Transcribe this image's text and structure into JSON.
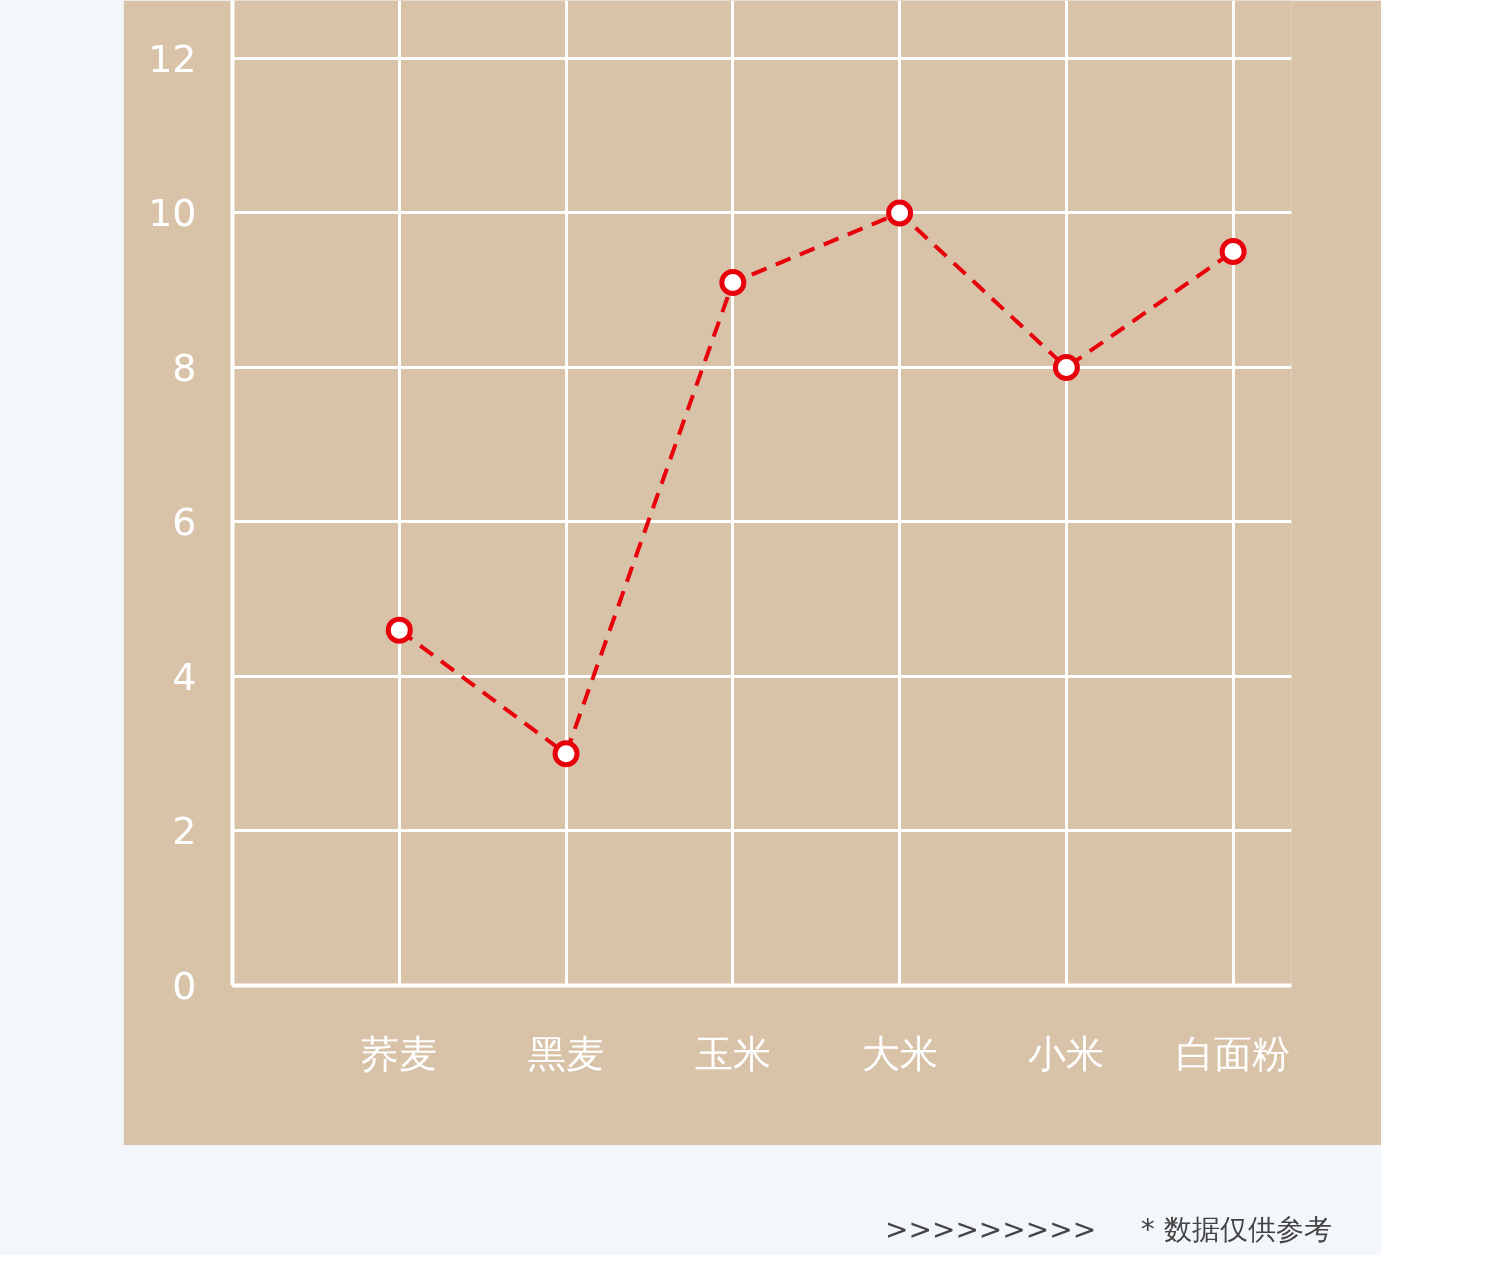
{
  "chart_data": {
    "type": "line",
    "categories": [
      "荞麦",
      "黑麦",
      "玉米",
      "大米",
      "小米",
      "白面粉"
    ],
    "values": [
      4.6,
      3.0,
      9.1,
      10,
      8,
      9.5
    ],
    "color": "#e8000b",
    "ylim": [
      0,
      12.75
    ],
    "yticks": [
      0,
      2,
      4,
      6,
      8,
      10,
      12
    ],
    "grid": true,
    "marker": "circle",
    "line_style": "dashed",
    "annotations": [
      ">>>>>>>>>",
      "* 数据仅供参考"
    ]
  }
}
